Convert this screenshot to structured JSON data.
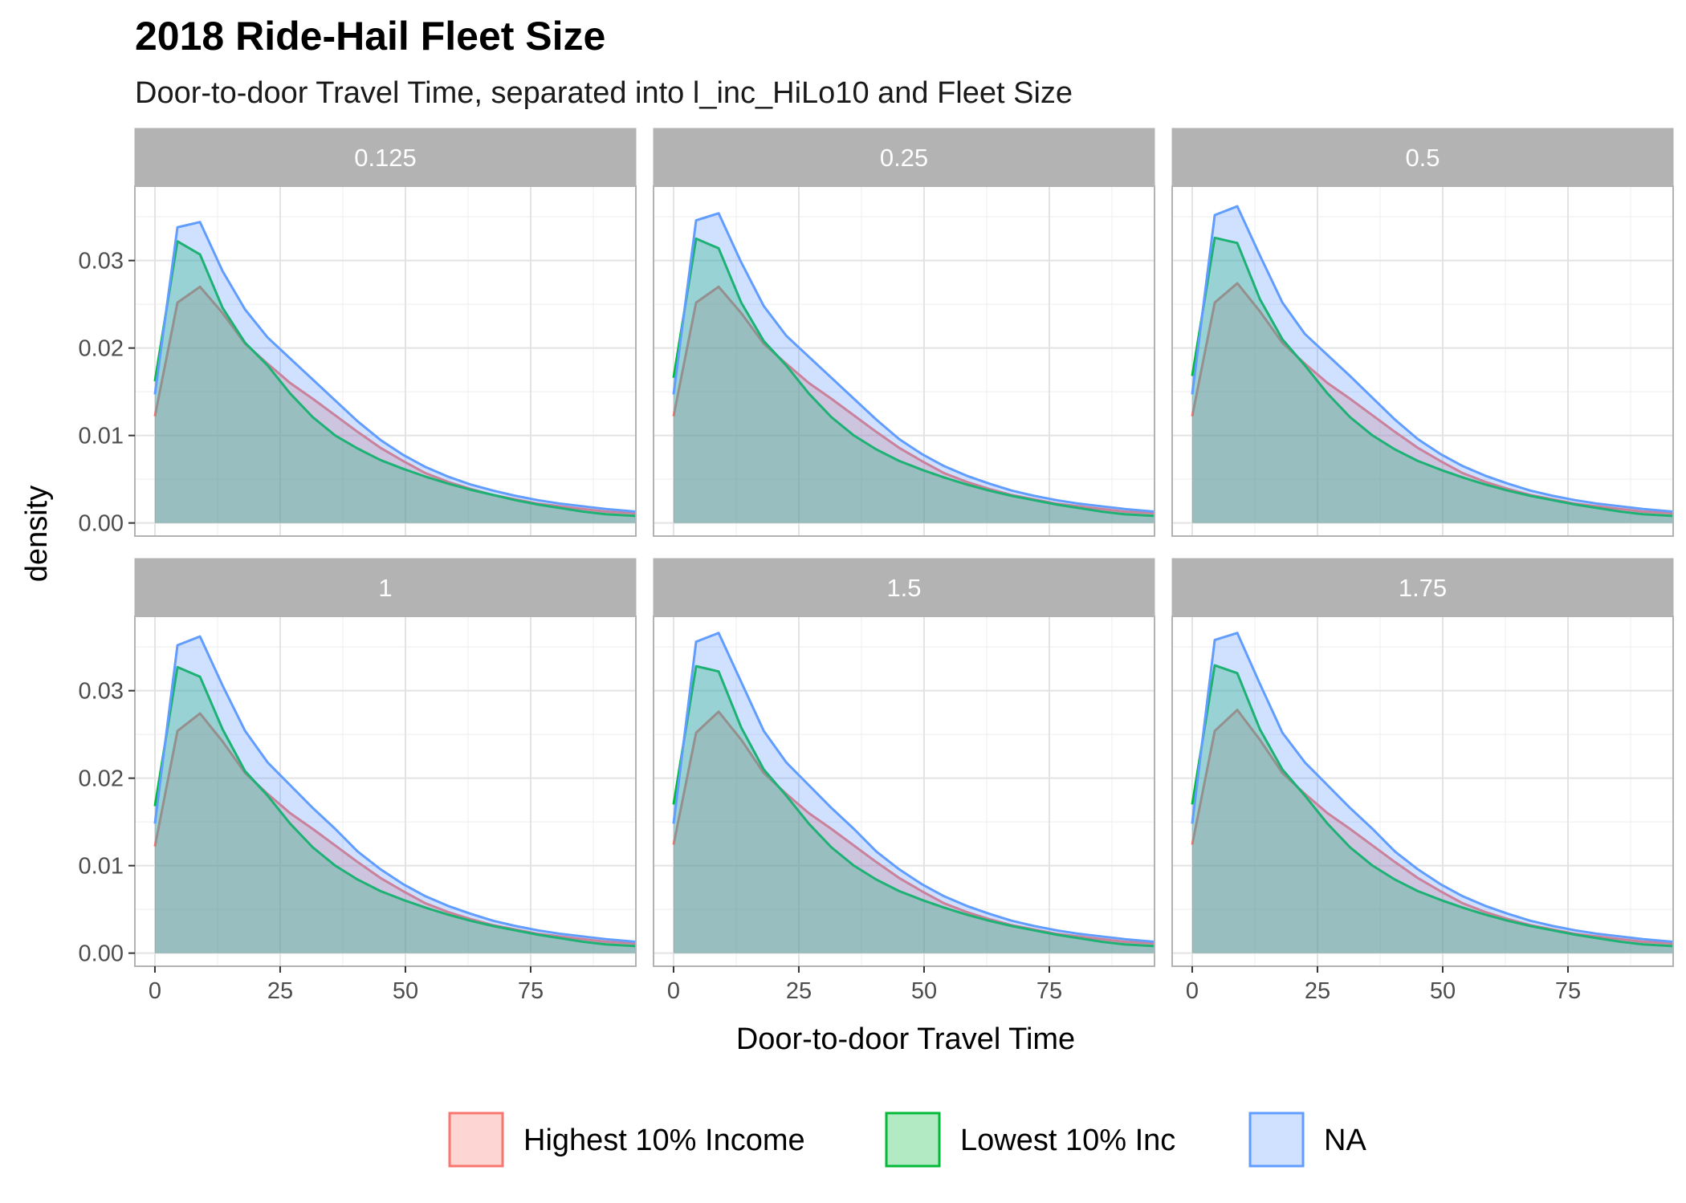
{
  "title": "2018 Ride-Hail Fleet Size",
  "subtitle": "Door-to-door Travel Time, separated into l_inc_HiLo10 and Fleet Size",
  "chart_data": {
    "type": "area",
    "title": "2018 Ride-Hail Fleet Size",
    "subtitle": "Door-to-door Travel Time, separated into l_inc_HiLo10 and Fleet Size",
    "xlabel": "Door-to-door Travel Time",
    "ylabel": "density",
    "xlim": [
      -4,
      96
    ],
    "ylim": [
      -0.0015,
      0.0385
    ],
    "x_ticks": [
      0,
      25,
      50,
      75
    ],
    "x_tick_labels": [
      "0",
      "25",
      "50",
      "75"
    ],
    "y_ticks": [
      0,
      0.01,
      0.02,
      0.03
    ],
    "y_tick_labels": [
      "0.00",
      "0.01",
      "0.02",
      "0.03"
    ],
    "grid": true,
    "legend": {
      "position": "bottom",
      "entries": [
        "Highest 10% Income",
        "Lowest 10% Inc",
        "NA"
      ]
    },
    "series_colors": {
      "Highest 10% Income": "#F8766D",
      "Lowest 10% Inc": "#00BA38",
      "NA": "#619CFF"
    },
    "facets": [
      {
        "label": "0.125",
        "series": [
          {
            "name": "Highest 10% Income",
            "x": [
              0,
              4.5,
              9,
              13.5,
              18,
              22.5,
              27,
              31.5,
              36,
              40.5,
              45,
              49.5,
              54,
              58.5,
              63,
              67.5,
              72,
              76.5,
              81,
              85.5,
              90,
              96
            ],
            "y": [
              0.0122,
              0.0252,
              0.027,
              0.024,
              0.0205,
              0.0182,
              0.016,
              0.0142,
              0.0123,
              0.0104,
              0.0086,
              0.0071,
              0.0057,
              0.0047,
              0.0039,
              0.0032,
              0.0027,
              0.0022,
              0.0019,
              0.0016,
              0.0013,
              0.0011
            ]
          },
          {
            "name": "Lowest 10% Inc",
            "x": [
              0,
              4.5,
              9,
              13.5,
              18,
              22.5,
              27,
              31.5,
              36,
              40.5,
              45,
              49.5,
              54,
              58.5,
              63,
              67.5,
              72,
              76.5,
              81,
              85.5,
              90,
              96
            ],
            "y": [
              0.0162,
              0.0322,
              0.0307,
              0.0246,
              0.0206,
              0.018,
              0.0148,
              0.0121,
              0.01,
              0.0085,
              0.0072,
              0.0062,
              0.0053,
              0.0045,
              0.0038,
              0.0032,
              0.0026,
              0.0021,
              0.0017,
              0.0013,
              0.001,
              0.0008
            ]
          },
          {
            "name": "NA",
            "x": [
              0,
              4.5,
              9,
              13.5,
              18,
              22.5,
              27,
              31.5,
              36,
              40.5,
              45,
              49.5,
              54,
              58.5,
              63,
              67.5,
              72,
              76.5,
              81,
              85.5,
              90,
              96
            ],
            "y": [
              0.0147,
              0.0338,
              0.0344,
              0.0288,
              0.0244,
              0.0212,
              0.0188,
              0.0164,
              0.014,
              0.0116,
              0.0095,
              0.0078,
              0.0064,
              0.0053,
              0.0044,
              0.0037,
              0.0031,
              0.0026,
              0.0022,
              0.0019,
              0.0016,
              0.0013
            ]
          }
        ]
      },
      {
        "label": "0.25",
        "series": [
          {
            "name": "Highest 10% Income",
            "x": [
              0,
              4.5,
              9,
              13.5,
              18,
              22.5,
              27,
              31.5,
              36,
              40.5,
              45,
              49.5,
              54,
              58.5,
              63,
              67.5,
              72,
              76.5,
              81,
              85.5,
              90,
              96
            ],
            "y": [
              0.0122,
              0.0252,
              0.027,
              0.024,
              0.0205,
              0.0182,
              0.016,
              0.0142,
              0.0123,
              0.0104,
              0.0086,
              0.0071,
              0.0057,
              0.0047,
              0.0039,
              0.0032,
              0.0027,
              0.0022,
              0.0019,
              0.0016,
              0.0013,
              0.0011
            ]
          },
          {
            "name": "Lowest 10% Inc",
            "x": [
              0,
              4.5,
              9,
              13.5,
              18,
              22.5,
              27,
              31.5,
              36,
              40.5,
              45,
              49.5,
              54,
              58.5,
              63,
              67.5,
              72,
              76.5,
              81,
              85.5,
              90,
              96
            ],
            "y": [
              0.0166,
              0.0325,
              0.0314,
              0.0252,
              0.0208,
              0.018,
              0.0148,
              0.0121,
              0.01,
              0.0084,
              0.0071,
              0.0061,
              0.0052,
              0.0044,
              0.0037,
              0.0031,
              0.0026,
              0.0021,
              0.0017,
              0.0013,
              0.001,
              0.0008
            ]
          },
          {
            "name": "NA",
            "x": [
              0,
              4.5,
              9,
              13.5,
              18,
              22.5,
              27,
              31.5,
              36,
              40.5,
              45,
              49.5,
              54,
              58.5,
              63,
              67.5,
              72,
              76.5,
              81,
              85.5,
              90,
              96
            ],
            "y": [
              0.0147,
              0.0346,
              0.0354,
              0.0298,
              0.0248,
              0.0214,
              0.019,
              0.0166,
              0.0142,
              0.0118,
              0.0096,
              0.0079,
              0.0065,
              0.0054,
              0.0045,
              0.0037,
              0.0031,
              0.0026,
              0.0022,
              0.0019,
              0.0016,
              0.0013
            ]
          }
        ]
      },
      {
        "label": "0.5",
        "series": [
          {
            "name": "Highest 10% Income",
            "x": [
              0,
              4.5,
              9,
              13.5,
              18,
              22.5,
              27,
              31.5,
              36,
              40.5,
              45,
              49.5,
              54,
              58.5,
              63,
              67.5,
              72,
              76.5,
              81,
              85.5,
              90,
              96
            ],
            "y": [
              0.0122,
              0.0252,
              0.0274,
              0.0242,
              0.0206,
              0.0182,
              0.016,
              0.0142,
              0.0123,
              0.0104,
              0.0086,
              0.0071,
              0.0057,
              0.0047,
              0.0039,
              0.0032,
              0.0027,
              0.0022,
              0.0019,
              0.0016,
              0.0013,
              0.0011
            ]
          },
          {
            "name": "Lowest 10% Inc",
            "x": [
              0,
              4.5,
              9,
              13.5,
              18,
              22.5,
              27,
              31.5,
              36,
              40.5,
              45,
              49.5,
              54,
              58.5,
              63,
              67.5,
              72,
              76.5,
              81,
              85.5,
              90,
              96
            ],
            "y": [
              0.0168,
              0.0326,
              0.032,
              0.0256,
              0.021,
              0.018,
              0.0148,
              0.0121,
              0.01,
              0.0084,
              0.0071,
              0.0061,
              0.0052,
              0.0044,
              0.0037,
              0.0031,
              0.0026,
              0.0021,
              0.0017,
              0.0013,
              0.001,
              0.0008
            ]
          },
          {
            "name": "NA",
            "x": [
              0,
              4.5,
              9,
              13.5,
              18,
              22.5,
              27,
              31.5,
              36,
              40.5,
              45,
              49.5,
              54,
              58.5,
              63,
              67.5,
              72,
              76.5,
              81,
              85.5,
              90,
              96
            ],
            "y": [
              0.0147,
              0.0352,
              0.0362,
              0.0306,
              0.0252,
              0.0216,
              0.0192,
              0.0168,
              0.0143,
              0.0118,
              0.0096,
              0.0079,
              0.0065,
              0.0054,
              0.0045,
              0.0037,
              0.0031,
              0.0026,
              0.0022,
              0.0019,
              0.0016,
              0.0013
            ]
          }
        ]
      },
      {
        "label": "1",
        "series": [
          {
            "name": "Highest 10% Income",
            "x": [
              0,
              4.5,
              9,
              13.5,
              18,
              22.5,
              27,
              31.5,
              36,
              40.5,
              45,
              49.5,
              54,
              58.5,
              63,
              67.5,
              72,
              76.5,
              81,
              85.5,
              90,
              96
            ],
            "y": [
              0.0122,
              0.0254,
              0.0274,
              0.0242,
              0.0206,
              0.0182,
              0.016,
              0.0142,
              0.0123,
              0.0104,
              0.0086,
              0.0071,
              0.0057,
              0.0047,
              0.0039,
              0.0032,
              0.0027,
              0.0022,
              0.0019,
              0.0016,
              0.0013,
              0.0011
            ]
          },
          {
            "name": "Lowest 10% Inc",
            "x": [
              0,
              4.5,
              9,
              13.5,
              18,
              22.5,
              27,
              31.5,
              36,
              40.5,
              45,
              49.5,
              54,
              58.5,
              63,
              67.5,
              72,
              76.5,
              81,
              85.5,
              90,
              96
            ],
            "y": [
              0.0168,
              0.0327,
              0.0316,
              0.0256,
              0.0208,
              0.018,
              0.0148,
              0.0121,
              0.01,
              0.0084,
              0.0071,
              0.0061,
              0.0052,
              0.0044,
              0.0037,
              0.0031,
              0.0026,
              0.0021,
              0.0017,
              0.0013,
              0.001,
              0.0008
            ]
          },
          {
            "name": "NA",
            "x": [
              0,
              4.5,
              9,
              13.5,
              18,
              22.5,
              27,
              31.5,
              36,
              40.5,
              45,
              49.5,
              54,
              58.5,
              63,
              67.5,
              72,
              76.5,
              81,
              85.5,
              90,
              96
            ],
            "y": [
              0.0148,
              0.0352,
              0.0362,
              0.0306,
              0.0254,
              0.0218,
              0.0192,
              0.0166,
              0.0142,
              0.0116,
              0.0096,
              0.0079,
              0.0065,
              0.0054,
              0.0045,
              0.0037,
              0.0031,
              0.0026,
              0.0022,
              0.0019,
              0.0016,
              0.0013
            ]
          }
        ]
      },
      {
        "label": "1.5",
        "series": [
          {
            "name": "Highest 10% Income",
            "x": [
              0,
              4.5,
              9,
              13.5,
              18,
              22.5,
              27,
              31.5,
              36,
              40.5,
              45,
              49.5,
              54,
              58.5,
              63,
              67.5,
              72,
              76.5,
              81,
              85.5,
              90,
              96
            ],
            "y": [
              0.0124,
              0.0252,
              0.0276,
              0.0244,
              0.0206,
              0.0182,
              0.016,
              0.0142,
              0.0123,
              0.0104,
              0.0086,
              0.0071,
              0.0057,
              0.0047,
              0.0039,
              0.0032,
              0.0027,
              0.0022,
              0.0019,
              0.0016,
              0.0013,
              0.0011
            ]
          },
          {
            "name": "Lowest 10% Inc",
            "x": [
              0,
              4.5,
              9,
              13.5,
              18,
              22.5,
              27,
              31.5,
              36,
              40.5,
              45,
              49.5,
              54,
              58.5,
              63,
              67.5,
              72,
              76.5,
              81,
              85.5,
              90,
              96
            ],
            "y": [
              0.017,
              0.0328,
              0.0322,
              0.0258,
              0.021,
              0.018,
              0.0148,
              0.0121,
              0.01,
              0.0084,
              0.0071,
              0.0061,
              0.0052,
              0.0044,
              0.0037,
              0.0031,
              0.0026,
              0.0021,
              0.0017,
              0.0013,
              0.001,
              0.0008
            ]
          },
          {
            "name": "NA",
            "x": [
              0,
              4.5,
              9,
              13.5,
              18,
              22.5,
              27,
              31.5,
              36,
              40.5,
              45,
              49.5,
              54,
              58.5,
              63,
              67.5,
              72,
              76.5,
              81,
              85.5,
              90,
              96
            ],
            "y": [
              0.0148,
              0.0356,
              0.0366,
              0.031,
              0.0254,
              0.0218,
              0.0192,
              0.0166,
              0.0142,
              0.0116,
              0.0096,
              0.0079,
              0.0065,
              0.0054,
              0.0045,
              0.0037,
              0.0031,
              0.0026,
              0.0022,
              0.0019,
              0.0016,
              0.0013
            ]
          }
        ]
      },
      {
        "label": "1.75",
        "series": [
          {
            "name": "Highest 10% Income",
            "x": [
              0,
              4.5,
              9,
              13.5,
              18,
              22.5,
              27,
              31.5,
              36,
              40.5,
              45,
              49.5,
              54,
              58.5,
              63,
              67.5,
              72,
              76.5,
              81,
              85.5,
              90,
              96
            ],
            "y": [
              0.0124,
              0.0254,
              0.0278,
              0.0244,
              0.0206,
              0.0182,
              0.016,
              0.0142,
              0.0123,
              0.0104,
              0.0086,
              0.0071,
              0.0057,
              0.0047,
              0.0039,
              0.0032,
              0.0027,
              0.0022,
              0.0019,
              0.0016,
              0.0013,
              0.0011
            ]
          },
          {
            "name": "Lowest 10% Inc",
            "x": [
              0,
              4.5,
              9,
              13.5,
              18,
              22.5,
              27,
              31.5,
              36,
              40.5,
              45,
              49.5,
              54,
              58.5,
              63,
              67.5,
              72,
              76.5,
              81,
              85.5,
              90,
              96
            ],
            "y": [
              0.017,
              0.0329,
              0.032,
              0.0256,
              0.021,
              0.018,
              0.0148,
              0.0121,
              0.01,
              0.0084,
              0.0071,
              0.0061,
              0.0052,
              0.0044,
              0.0037,
              0.0031,
              0.0026,
              0.0021,
              0.0017,
              0.0013,
              0.001,
              0.0008
            ]
          },
          {
            "name": "NA",
            "x": [
              0,
              4.5,
              9,
              13.5,
              18,
              22.5,
              27,
              31.5,
              36,
              40.5,
              45,
              49.5,
              54,
              58.5,
              63,
              67.5,
              72,
              76.5,
              81,
              85.5,
              90,
              96
            ],
            "y": [
              0.0148,
              0.0358,
              0.0366,
              0.0308,
              0.0252,
              0.0218,
              0.0192,
              0.0166,
              0.0142,
              0.0116,
              0.0096,
              0.0079,
              0.0065,
              0.0054,
              0.0045,
              0.0037,
              0.0031,
              0.0026,
              0.0022,
              0.0019,
              0.0016,
              0.0013
            ]
          }
        ]
      }
    ]
  }
}
